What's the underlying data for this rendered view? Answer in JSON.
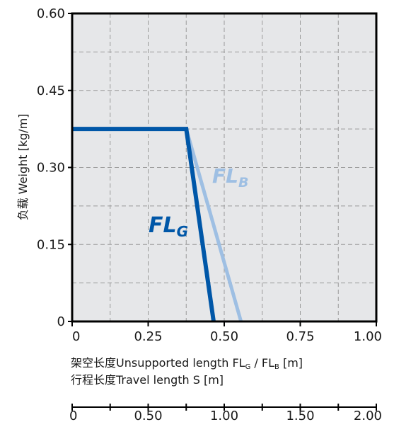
{
  "chart_data": {
    "type": "line",
    "ylabel": "负载 Weight  [kg/m]",
    "xlabel_line1_main": "架空长度Unsupported length FL",
    "xlabel_line1_sub1": "G",
    "xlabel_line1_mid": " / FL",
    "xlabel_line1_sub2": "B",
    "xlabel_line1_end": " [m]",
    "xlabel_line2": "行程长度Travel length S [m]",
    "xlim": [
      0,
      1.0
    ],
    "ylim": [
      0,
      0.6
    ],
    "x_ticks": [
      "0",
      "0.25",
      "0.50",
      "0.75",
      "1.00"
    ],
    "x_ticks_values": [
      0,
      0.25,
      0.5,
      0.75,
      1.0
    ],
    "y_ticks": [
      "0",
      "0.15",
      "0.30",
      "0.45",
      "0.60"
    ],
    "y_ticks_values": [
      0,
      0.15,
      0.3,
      0.45,
      0.6
    ],
    "x2_ticks": [
      "0",
      "0.50",
      "1.00",
      "1.50",
      "2.00"
    ],
    "x2_ticks_values": [
      0,
      0.5,
      1.0,
      1.5,
      2.0
    ],
    "x2lim": [
      0,
      2.0
    ],
    "grid": true,
    "series": [
      {
        "name": "FL_G",
        "label_main": "FL",
        "label_sub": "G",
        "color": "#0057a8",
        "x": [
          0,
          0.375,
          0.465
        ],
        "y": [
          0.375,
          0.375,
          0
        ]
      },
      {
        "name": "FL_B",
        "label_main": "FL",
        "label_sub": "B",
        "color": "#9ebfe3",
        "x": [
          0.375,
          0.555
        ],
        "y": [
          0.375,
          0
        ]
      }
    ]
  }
}
